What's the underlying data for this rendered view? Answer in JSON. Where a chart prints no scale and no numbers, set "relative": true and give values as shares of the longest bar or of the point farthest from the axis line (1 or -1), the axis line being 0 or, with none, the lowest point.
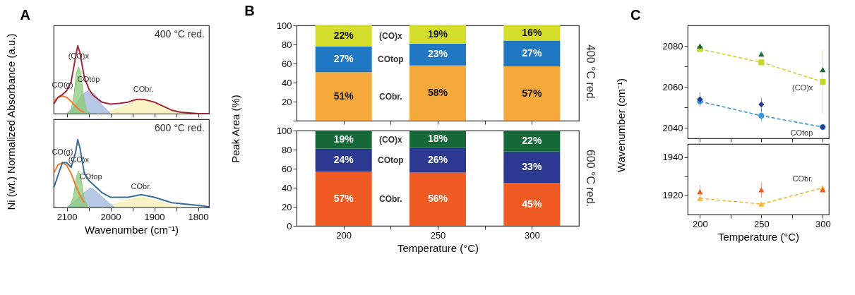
{
  "chart_data": [
    {
      "type": "line",
      "title": "A",
      "ylabel": "Ni (wt.) Normalized Absorbance (a.u.)",
      "relative": true,
      "xlim": [
        2130,
        1775
      ],
      "xticks": [
        2100,
        {
          "value": 2050,
          "label": null
        },
        2000,
        {
          "value": 1950,
          "label": null
        },
        1900,
        {
          "value": 1850,
          "label": null
        },
        1800
      ],
      "tick_labels": false,
      "annotations": [
        "400 °C red.",
        {
          "text": "CO(g)",
          "x": 2110,
          "y": 0.26
        },
        {
          "text": "(CO)x",
          "x": 2073,
          "y": 0.69
        },
        {
          "text": "COtop",
          "x": 2050,
          "y": 0.34
        },
        {
          "text": "CObr.",
          "x": 1925,
          "y": 0.2
        }
      ],
      "series": [
        {
          "type": "area",
          "color": "#f5eeb0",
          "x": [
            2030,
            2000,
            1970,
            1945,
            1925,
            1905,
            1880,
            1850,
            1820
          ],
          "values": [
            0,
            0.04,
            0.11,
            0.18,
            0.2,
            0.18,
            0.11,
            0.04,
            0
          ]
        },
        {
          "type": "area",
          "color": "#9fb4dd",
          "x": [
            2100,
            2080,
            2065,
            2050,
            2035,
            2020,
            2000
          ],
          "values": [
            0,
            0.13,
            0.28,
            0.34,
            0.28,
            0.13,
            0
          ]
        },
        {
          "type": "area",
          "color": "#8cc97a",
          "x": [
            2100,
            2090,
            2083,
            2078,
            2073,
            2068,
            2063,
            2055,
            2045
          ],
          "values": [
            0,
            0.05,
            0.3,
            0.6,
            0.69,
            0.6,
            0.3,
            0.05,
            0
          ]
        },
        {
          "type": "line",
          "color": "#f07a30",
          "x": [
            2130,
            2120,
            2110,
            2100,
            2090,
            2080,
            2070,
            2060
          ],
          "values": [
            0.18,
            0.24,
            0.26,
            0.24,
            0.18,
            0.11,
            0.05,
            0.02
          ]
        },
        {
          "type": "line",
          "color": "#a3263a",
          "x": [
            2130,
            2120,
            2110,
            2100,
            2090,
            2080,
            2075,
            2070,
            2060,
            2050,
            2040,
            2020,
            2000,
            1980,
            1960,
            1940,
            1925,
            1900,
            1880,
            1860,
            1840,
            1800,
            1775
          ],
          "values": [
            0.14,
            0.24,
            0.28,
            0.34,
            0.47,
            0.83,
            1.0,
            0.9,
            0.54,
            0.37,
            0.27,
            0.17,
            0.14,
            0.15,
            0.17,
            0.21,
            0.21,
            0.17,
            0.11,
            0.05,
            0.02,
            0,
            0
          ]
        }
      ]
    },
    {
      "type": "line",
      "xlabel": "Wavenumber (cm⁻¹)",
      "relative": true,
      "xlim": [
        2130,
        1775
      ],
      "xticks": [
        2100,
        {
          "value": 2050,
          "label": null
        },
        2000,
        {
          "value": 1950,
          "label": null
        },
        1900,
        {
          "value": 1850,
          "label": null
        },
        1800
      ],
      "tick_labels": "x",
      "annotations": [
        "600 °C red.",
        {
          "text": "CO(g)",
          "x": 2110,
          "y": 0.66
        },
        {
          "text": "(CO)x",
          "x": 2073,
          "y": 0.54
        },
        {
          "text": "COtop",
          "x": 2045,
          "y": 0.29
        },
        {
          "text": "CObr.",
          "x": 1930,
          "y": 0.15
        }
      ],
      "series": [
        {
          "type": "area",
          "color": "#f5eeb0",
          "x": [
            2020,
            1990,
            1960,
            1930,
            1900,
            1870,
            1840
          ],
          "values": [
            0,
            0.05,
            0.11,
            0.15,
            0.11,
            0.05,
            0
          ]
        },
        {
          "type": "area",
          "color": "#9fb4dd",
          "x": [
            2100,
            2080,
            2060,
            2045,
            2030,
            2010,
            1990
          ],
          "values": [
            0,
            0.1,
            0.22,
            0.29,
            0.22,
            0.1,
            0
          ]
        },
        {
          "type": "area",
          "color": "#8cc97a",
          "x": [
            2095,
            2085,
            2078,
            2073,
            2068,
            2060,
            2050
          ],
          "values": [
            0,
            0.15,
            0.45,
            0.54,
            0.45,
            0.12,
            0
          ]
        },
        {
          "type": "line",
          "color": "#f07a30",
          "x": [
            2130,
            2120,
            2110,
            2100,
            2090,
            2080,
            2070,
            2060
          ],
          "values": [
            0.5,
            0.63,
            0.66,
            0.62,
            0.5,
            0.33,
            0.18,
            0.07
          ]
        },
        {
          "type": "line",
          "color": "#3a6e9a",
          "x": [
            2130,
            2110,
            2100,
            2090,
            2080,
            2075,
            2070,
            2060,
            2050,
            2040,
            2020,
            2000,
            1960,
            1930,
            1900,
            1860,
            1800,
            1775
          ],
          "values": [
            0.29,
            0.66,
            0.66,
            0.59,
            0.81,
            1.0,
            0.88,
            0.51,
            0.4,
            0.34,
            0.22,
            0.15,
            0.15,
            0.19,
            0.15,
            0.07,
            0.03,
            0.01
          ]
        }
      ]
    },
    {
      "type": "bar",
      "title": "B",
      "ylabel": "Peak Area (%)",
      "stacked": true,
      "x": [
        200,
        250,
        300
      ],
      "xlim": [
        175,
        325
      ],
      "xticks": [
        200,
        {
          "value": 225,
          "label": null
        },
        250,
        {
          "value": 275,
          "label": null
        },
        300
      ],
      "ylim": [
        0,
        100
      ],
      "yticks": [
        {
          "value": 0,
          "label": null
        },
        20,
        40,
        60,
        80,
        100
      ],
      "tick_labels": "y",
      "annotations": [
        "400 °C red."
      ],
      "series": [
        {
          "name": "CObr.",
          "color": "#f5a93a",
          "values": [
            51,
            58,
            57
          ],
          "value_labels": [
            "51%",
            "58%",
            "57%"
          ]
        },
        {
          "name": "COtop",
          "color": "#1f78c1",
          "values": [
            27,
            23,
            27
          ],
          "value_labels": [
            "27%",
            "23%",
            "27%"
          ]
        },
        {
          "name": "(CO)x",
          "color": "#d4de2a",
          "values": [
            22,
            19,
            16
          ],
          "value_labels": [
            "22%",
            "19%",
            "16%"
          ]
        }
      ]
    },
    {
      "type": "bar",
      "xlabel": "Temperature (°C)",
      "stacked": true,
      "x": [
        200,
        250,
        300
      ],
      "xlim": [
        175,
        325
      ],
      "xticks": [
        200,
        {
          "value": 225,
          "label": null
        },
        250,
        {
          "value": 275,
          "label": null
        },
        300
      ],
      "ylim": [
        0,
        100
      ],
      "yticks": [
        0,
        20,
        40,
        60,
        80,
        100
      ],
      "annotations": [
        "600 °C red."
      ],
      "series": [
        {
          "name": "CObr.",
          "color": "#f05a23",
          "values": [
            57,
            56,
            45
          ],
          "value_labels": [
            "57%",
            "56%",
            "45%"
          ]
        },
        {
          "name": "COtop",
          "color": "#2b3990",
          "values": [
            24,
            26,
            33
          ],
          "value_labels": [
            "24%",
            "26%",
            "33%"
          ]
        },
        {
          "name": "(CO)x",
          "color": "#17693a",
          "values": [
            19,
            18,
            22
          ],
          "value_labels": [
            "19%",
            "18%",
            "22%"
          ]
        }
      ]
    },
    {
      "type": "line",
      "title": "C",
      "ylabel": "Wavenumber (cm⁻¹)",
      "x": [
        200,
        250,
        300
      ],
      "xlim": [
        190,
        305
      ],
      "xticks": [
        200,
        {
          "value": 225,
          "label": null
        },
        250,
        {
          "value": 275,
          "label": null
        },
        300
      ],
      "ylim": [
        2035,
        2090
      ],
      "yticks": [
        2040,
        {
          "value": 2050,
          "label": null
        },
        2060,
        {
          "value": 2070,
          "label": null
        },
        2080
      ],
      "tick_labels": "y",
      "line_style": "dashed",
      "series": [
        {
          "type": "line",
          "name": "(CO)x",
          "marker": "square",
          "color": "#c9d62a",
          "values": [
            2078.5,
            2072,
            2062.5
          ],
          "errors": [
            null,
            null,
            [
              2047,
              2078
            ]
          ]
        },
        {
          "type": "scatter",
          "marker": "triangle",
          "color": "#17693a",
          "values": [
            2080,
            2076,
            2068.5
          ]
        },
        {
          "type": "line",
          "name": "COtop",
          "marker": "circle",
          "color": "#3a9ad9",
          "values": [
            2053,
            2046,
            2040.5
          ],
          "errors": [
            null,
            3,
            null
          ]
        },
        {
          "type": "scatter",
          "marker": "diamond",
          "color": "#2b3990",
          "values": [
            2054,
            2051.5,
            2040.5
          ],
          "errors": [
            3.5,
            3.5,
            null
          ]
        }
      ]
    },
    {
      "type": "line",
      "xlabel": "Temperature (°C)",
      "x": [
        200,
        250,
        300
      ],
      "xlim": [
        190,
        305
      ],
      "xticks": [
        200,
        {
          "value": 225,
          "label": null
        },
        250,
        {
          "value": 275,
          "label": null
        },
        300
      ],
      "ylim": [
        1910,
        1947
      ],
      "yticks": [
        1920,
        {
          "value": 1930,
          "label": null
        },
        1940
      ],
      "line_style": "dashed",
      "series": [
        {
          "type": "line",
          "name": "CObr.",
          "marker": "triangle",
          "color": "#f7b538",
          "values": [
            1918.5,
            1915.5,
            1924
          ],
          "errors": [
            1.5,
            1.5,
            null
          ]
        },
        {
          "type": "scatter",
          "marker": "triangle",
          "color": "#f05a23",
          "values": [
            1922,
            1923,
            1923
          ],
          "errors": [
            3.5,
            4,
            null
          ]
        }
      ]
    }
  ]
}
